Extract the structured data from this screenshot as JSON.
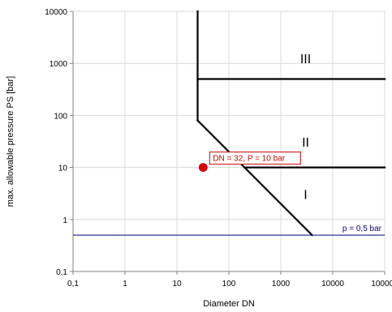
{
  "chart_data": {
    "type": "line",
    "xlabel": "Diameter DN",
    "ylabel": "max. allowable pressure PS [bar]",
    "xscale": "log",
    "yscale": "log",
    "xlim": [
      0.1,
      100000
    ],
    "ylim": [
      0.1,
      10000
    ],
    "grid": true,
    "x_ticks": [
      {
        "value": 0.1,
        "label": "0,1"
      },
      {
        "value": 1,
        "label": "1"
      },
      {
        "value": 10,
        "label": "10"
      },
      {
        "value": 100,
        "label": "100"
      },
      {
        "value": 1000,
        "label": "1000"
      },
      {
        "value": 10000,
        "label": "10000"
      },
      {
        "value": 100000,
        "label": "100000"
      }
    ],
    "y_ticks": [
      {
        "value": 0.1,
        "label": "0,1"
      },
      {
        "value": 1,
        "label": "1"
      },
      {
        "value": 10,
        "label": "10"
      },
      {
        "value": 100,
        "label": "100"
      },
      {
        "value": 1000,
        "label": "1000"
      },
      {
        "value": 10000,
        "label": "10000"
      }
    ],
    "boundaries": [
      {
        "id": "vertical-dn25",
        "color": "#000000",
        "points": [
          [
            25,
            10000
          ],
          [
            25,
            80
          ]
        ]
      },
      {
        "id": "diagonal-ps-dn",
        "color": "#000000",
        "points": [
          [
            25,
            80
          ],
          [
            4000,
            0.5
          ]
        ]
      },
      {
        "id": "cat-iii-boundary",
        "color": "#000000",
        "points": [
          [
            25,
            500
          ],
          [
            100000,
            500
          ]
        ]
      },
      {
        "id": "cat-ii-boundary",
        "color": "#000000",
        "points": [
          [
            200,
            10
          ],
          [
            100000,
            10
          ]
        ]
      }
    ],
    "reference_line": {
      "y": 0.5,
      "label": "p = 0,5 bar",
      "color": "#000080"
    },
    "regions": [
      {
        "label": "III",
        "x": 3000,
        "y": 1000
      },
      {
        "label": "II",
        "x": 3000,
        "y": 25
      },
      {
        "label": "I",
        "x": 3000,
        "y": 2.5
      }
    ],
    "point": {
      "x": 32,
      "y": 10,
      "label": "DN = 32, P = 10 bar",
      "color": "#dd0000"
    }
  }
}
